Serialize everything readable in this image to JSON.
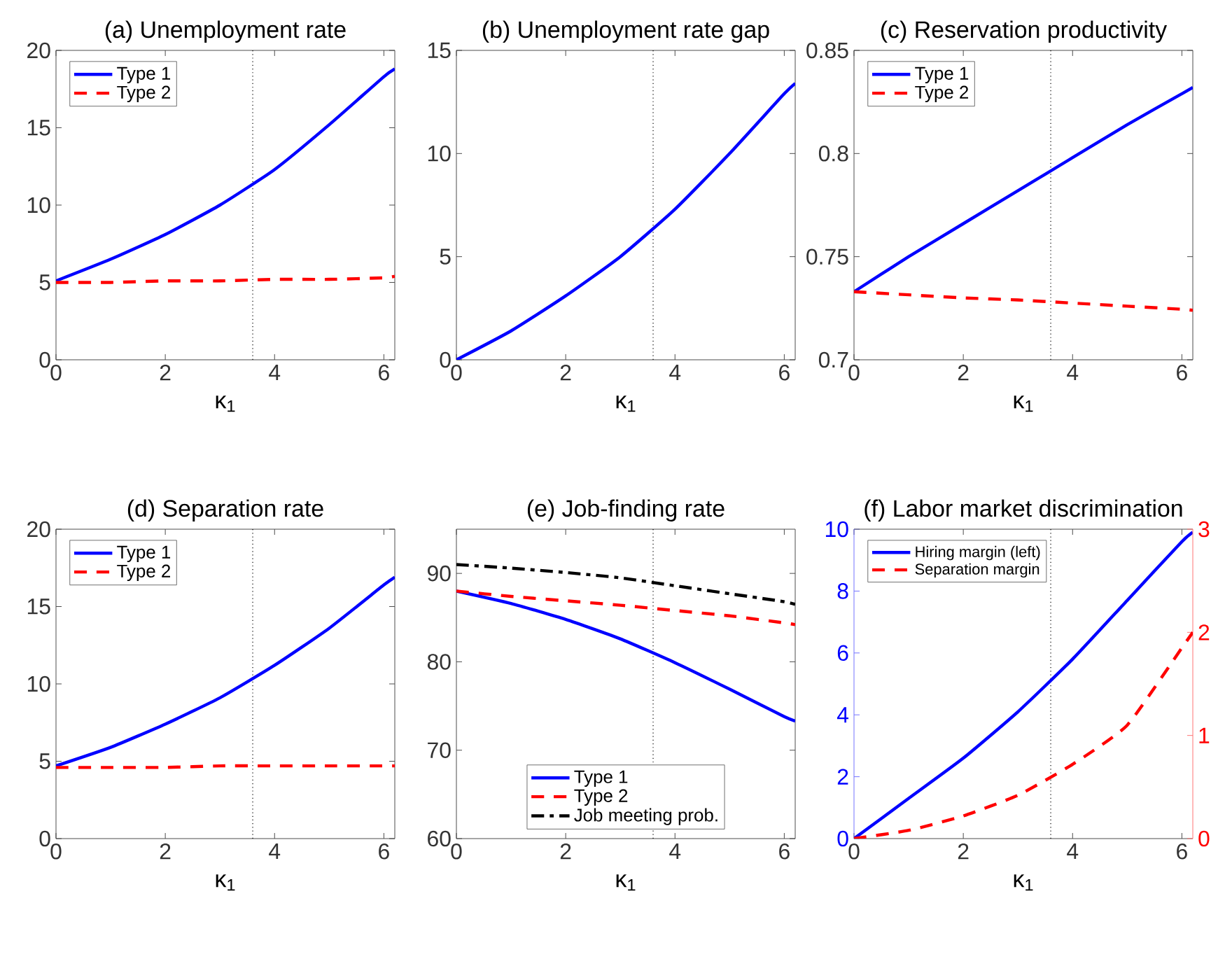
{
  "chart_data": [
    {
      "type": "line",
      "title": "(a) Unemployment rate",
      "xlabel": "κ$_{1}$",
      "xlim": [
        0,
        6.2
      ],
      "xticks": [
        0,
        2,
        4,
        6
      ],
      "ylim": [
        0,
        20
      ],
      "yticks": [
        0,
        5,
        10,
        15,
        20
      ],
      "grid": false,
      "legend": "top left",
      "marker": "none",
      "x": [
        0,
        1,
        2,
        3,
        4,
        5,
        6,
        6.2
      ],
      "series": [
        {
          "name": "Type 1",
          "color": "#0000ff",
          "line_style": "solid",
          "values": [
            5.1,
            6.5,
            8.1,
            10.0,
            12.3,
            15.2,
            18.3,
            18.8
          ]
        },
        {
          "name": "Type 2",
          "color": "#ff0000",
          "line_style": "dashed",
          "values": [
            5.0,
            5.0,
            5.1,
            5.1,
            5.2,
            5.2,
            5.3,
            5.4
          ]
        }
      ],
      "ref_lines": [
        {
          "axis": "x",
          "value": 3.6,
          "color": "#000000",
          "line_style": "dotted"
        }
      ]
    },
    {
      "type": "line",
      "title": "(b) Unemployment rate gap",
      "xlabel": "κ$_{1}$",
      "xlim": [
        0,
        6.2
      ],
      "xticks": [
        0,
        2,
        4,
        6
      ],
      "ylim": [
        0,
        15
      ],
      "yticks": [
        0,
        5,
        10,
        15
      ],
      "grid": false,
      "legend": false,
      "marker": "none",
      "x": [
        0,
        1,
        2,
        3,
        4,
        5,
        6,
        6.2
      ],
      "series": [
        {
          "color": "#0000ff",
          "line_style": "solid",
          "values": [
            0,
            1.4,
            3.1,
            5.0,
            7.3,
            10.0,
            12.9,
            13.4
          ]
        }
      ],
      "ref_lines": [
        {
          "axis": "x",
          "value": 3.6,
          "color": "#000000",
          "line_style": "dotted"
        }
      ]
    },
    {
      "type": "line",
      "title": "(c) Reservation productivity",
      "xlabel": "κ$_{1}$",
      "xlim": [
        0,
        6.2
      ],
      "xticks": [
        0,
        2,
        4,
        6
      ],
      "ylim": [
        0.7,
        0.85
      ],
      "yticks": [
        0.7,
        0.75,
        0.8,
        0.85
      ],
      "grid": false,
      "legend": "top left",
      "marker": "none",
      "x": [
        0,
        1,
        2,
        3,
        4,
        5,
        6,
        6.2
      ],
      "series": [
        {
          "name": "Type 1",
          "color": "#0000ff",
          "line_style": "solid",
          "values": [
            0.733,
            0.75,
            0.766,
            0.782,
            0.798,
            0.814,
            0.829,
            0.832
          ]
        },
        {
          "name": "Type 2",
          "color": "#ff0000",
          "line_style": "dashed",
          "values": [
            0.733,
            0.7315,
            0.73,
            0.729,
            0.7275,
            0.726,
            0.7245,
            0.724
          ]
        }
      ],
      "ref_lines": [
        {
          "axis": "x",
          "value": 3.6,
          "color": "#000000",
          "line_style": "dotted"
        }
      ]
    },
    {
      "type": "line",
      "title": "(d) Separation rate",
      "xlabel": "κ$_{1}$",
      "xlim": [
        0,
        6.2
      ],
      "xticks": [
        0,
        2,
        4,
        6
      ],
      "ylim": [
        0,
        20
      ],
      "yticks": [
        0,
        5,
        10,
        15,
        20
      ],
      "grid": false,
      "legend": "top left",
      "marker": "none",
      "x": [
        0,
        1,
        2,
        3,
        4,
        5,
        6,
        6.2
      ],
      "series": [
        {
          "name": "Type 1",
          "color": "#0000ff",
          "line_style": "solid",
          "values": [
            4.7,
            5.9,
            7.4,
            9.1,
            11.2,
            13.6,
            16.4,
            16.9
          ]
        },
        {
          "name": "Type 2",
          "color": "#ff0000",
          "line_style": "dashed",
          "values": [
            4.6,
            4.6,
            4.6,
            4.7,
            4.7,
            4.7,
            4.7,
            4.7
          ]
        }
      ],
      "ref_lines": [
        {
          "axis": "x",
          "value": 3.6,
          "color": "#000000",
          "line_style": "dotted"
        }
      ]
    },
    {
      "type": "line",
      "title": "(e) Job-finding rate",
      "xlabel": "κ$_{1}$",
      "xlim": [
        0,
        6.2
      ],
      "xticks": [
        0,
        2,
        4,
        6
      ],
      "ylim": [
        60,
        95
      ],
      "yticks": [
        60,
        70,
        80,
        90
      ],
      "grid": false,
      "legend": "bottom",
      "marker": "none",
      "x": [
        0,
        1,
        2,
        3,
        4,
        5,
        6,
        6.2
      ],
      "series": [
        {
          "name": "Type 1",
          "color": "#0000ff",
          "line_style": "solid",
          "values": [
            88,
            86.6,
            84.8,
            82.6,
            79.9,
            76.9,
            73.8,
            73.3
          ]
        },
        {
          "name": "Type 2",
          "color": "#ff0000",
          "line_style": "dashed",
          "values": [
            88,
            87.4,
            86.9,
            86.4,
            85.8,
            85.2,
            84.4,
            84.2
          ]
        },
        {
          "name": "Job meeting prob.",
          "color": "#000000",
          "line_style": "dashdot",
          "values": [
            91,
            90.6,
            90.1,
            89.5,
            88.6,
            87.7,
            86.8,
            86.5
          ]
        }
      ],
      "ref_lines": [
        {
          "axis": "x",
          "value": 3.6,
          "color": "#000000",
          "line_style": "dotted"
        }
      ]
    },
    {
      "type": "line",
      "title": "(f) Labor market discrimination",
      "xlabel": "κ$_{1}$",
      "xlim": [
        0,
        6.2
      ],
      "xticks": [
        0,
        2,
        4,
        6
      ],
      "ylim": [
        0,
        10
      ],
      "yticks": [
        0,
        2,
        4,
        6,
        8,
        10
      ],
      "y2lim": [
        0,
        3
      ],
      "y2ticks": [
        0,
        1,
        2,
        3
      ],
      "grid": false,
      "legend": "top left",
      "marker": "none",
      "x": [
        0,
        1,
        2,
        3,
        4,
        5,
        6,
        6.2
      ],
      "series": [
        {
          "name": "Hiring margin (left)",
          "color": "#0000ff",
          "line_style": "solid",
          "values": [
            0,
            1.3,
            2.6,
            4.1,
            5.8,
            7.7,
            9.6,
            9.9
          ]
        },
        {
          "name": "Separation margin",
          "color": "#ff0000",
          "line_style": "dashed",
          "axis": "y2",
          "values": [
            0,
            0.08,
            0.22,
            0.42,
            0.72,
            1.1,
            1.85,
            2.0
          ]
        }
      ],
      "ref_lines": [
        {
          "axis": "x",
          "value": 3.6,
          "color": "#000000",
          "line_style": "dotted"
        }
      ]
    }
  ]
}
